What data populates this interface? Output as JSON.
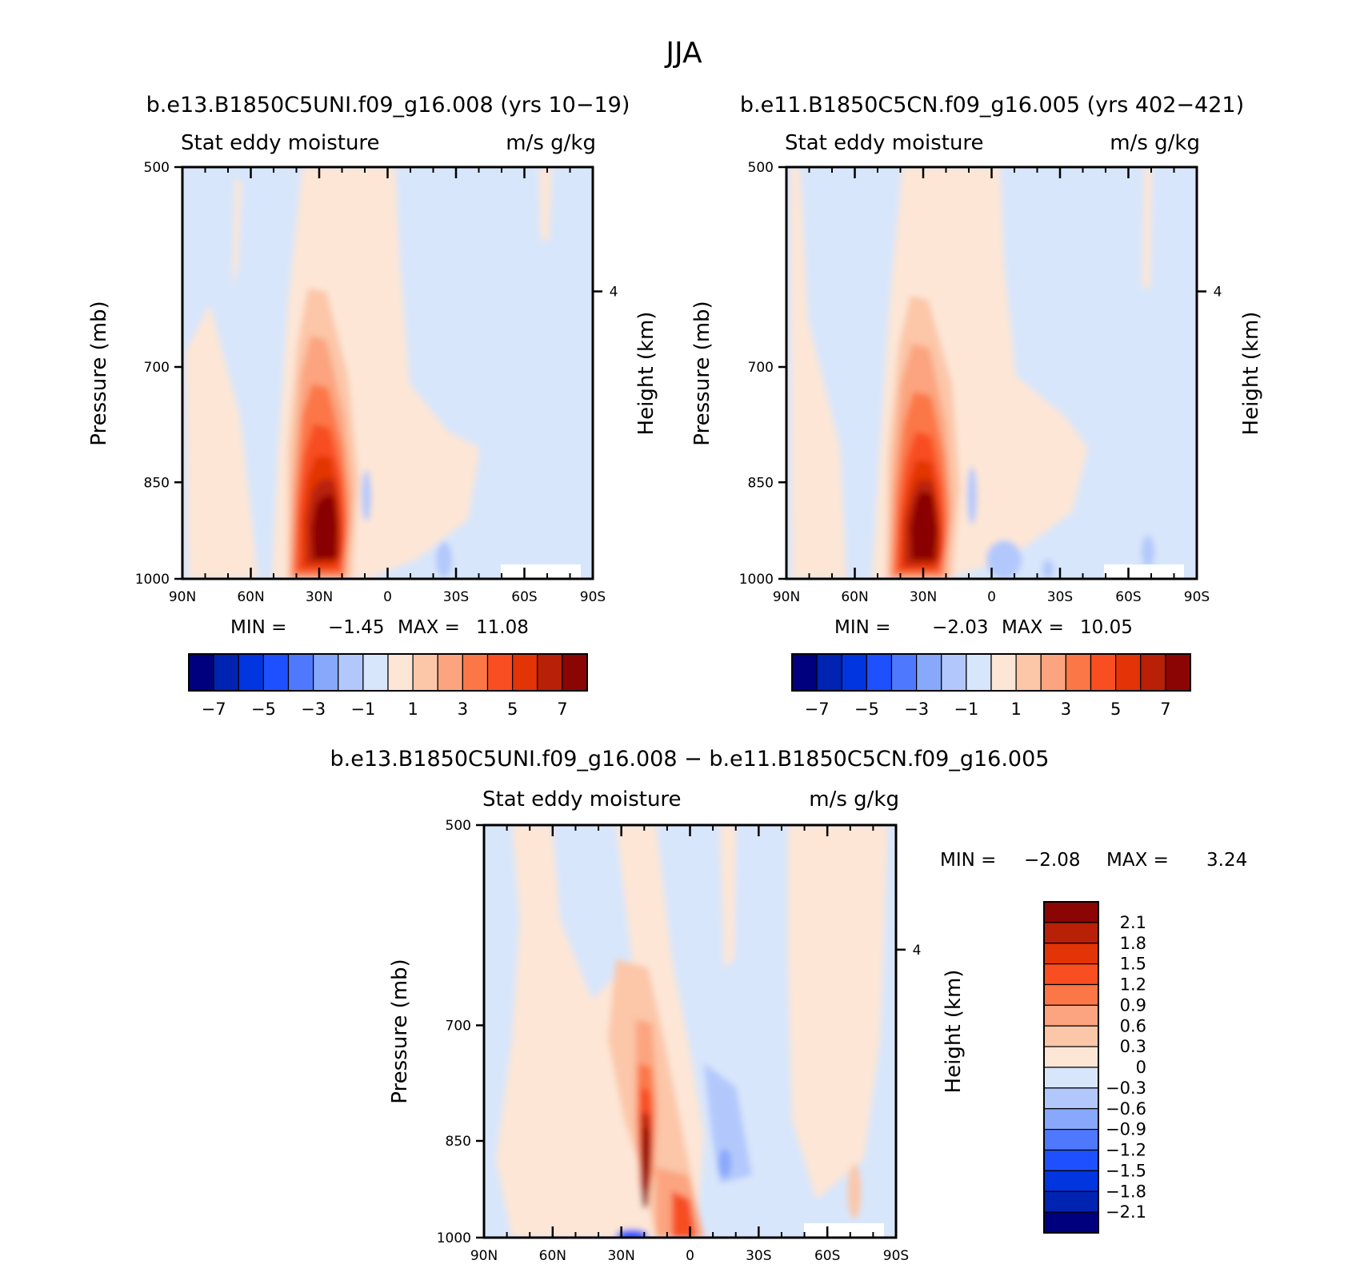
{
  "chart_data": {
    "type": "heatmap",
    "title": "JJA",
    "panels": [
      {
        "id": "model-a",
        "subtitle": "b.e13.B1850C5UNI.f09_g16.008 (yrs 10−19)",
        "left_label": "Stat eddy moisture",
        "right_label": "m/s g/kg",
        "ylabel": "Pressure (mb)",
        "ylabel_right": "Height (km)",
        "x_ticks": [
          "90N",
          "60N",
          "30N",
          "0",
          "30S",
          "60S",
          "90S"
        ],
        "x_range": [
          90,
          -90
        ],
        "y_ticks": [
          "500",
          "700",
          "850",
          "1000"
        ],
        "y_range": [
          500,
          1000
        ],
        "height_ticks": [
          "4"
        ],
        "min_label": "MIN =",
        "min": "−1.45",
        "max_label": "MAX =",
        "max": "11.08",
        "colorbar_labels": [
          "−7",
          "−5",
          "−3",
          "−1",
          "1",
          "3",
          "5",
          "7"
        ],
        "contour_levels": [
          -7,
          -6,
          -5,
          -4,
          -3,
          -2,
          -1,
          0,
          1,
          2,
          3,
          4,
          5,
          6,
          7
        ]
      },
      {
        "id": "model-b",
        "subtitle": "b.e11.B1850C5CN.f09_g16.005 (yrs 402−421)",
        "left_label": "Stat eddy moisture",
        "right_label": "m/s g/kg",
        "ylabel": "Pressure (mb)",
        "ylabel_right": "Height (km)",
        "x_ticks": [
          "90N",
          "60N",
          "30N",
          "0",
          "30S",
          "60S",
          "90S"
        ],
        "x_range": [
          90,
          -90
        ],
        "y_ticks": [
          "500",
          "700",
          "850",
          "1000"
        ],
        "y_range": [
          500,
          1000
        ],
        "height_ticks": [
          "4"
        ],
        "min_label": "MIN =",
        "min": "−2.03",
        "max_label": "MAX =",
        "max": "10.05",
        "colorbar_labels": [
          "−7",
          "−5",
          "−3",
          "−1",
          "1",
          "3",
          "5",
          "7"
        ],
        "contour_levels": [
          -7,
          -6,
          -5,
          -4,
          -3,
          -2,
          -1,
          0,
          1,
          2,
          3,
          4,
          5,
          6,
          7
        ]
      },
      {
        "id": "difference",
        "subtitle": "b.e13.B1850C5UNI.f09_g16.008 − b.e11.B1850C5CN.f09_g16.005",
        "left_label": "Stat eddy moisture",
        "right_label": "m/s g/kg",
        "ylabel": "Pressure (mb)",
        "ylabel_right": "Height (km)",
        "x_ticks": [
          "90N",
          "60N",
          "30N",
          "0",
          "30S",
          "60S",
          "90S"
        ],
        "x_range": [
          90,
          -90
        ],
        "y_ticks": [
          "500",
          "700",
          "850",
          "1000"
        ],
        "y_range": [
          500,
          1000
        ],
        "height_ticks": [
          "4"
        ],
        "min_label": "MIN =",
        "min": "−2.08",
        "max_label": "MAX =",
        "max": "3.24",
        "colorbar_labels": [
          "2.1",
          "1.8",
          "1.5",
          "1.2",
          "0.9",
          "0.6",
          "0.3",
          "0",
          "−0.3",
          "−0.6",
          "−0.9",
          "−1.2",
          "−1.5",
          "−1.8",
          "−2.1"
        ],
        "contour_levels": [
          -2.1,
          -1.8,
          -1.5,
          -1.2,
          -0.9,
          -0.6,
          -0.3,
          0,
          0.3,
          0.6,
          0.9,
          1.2,
          1.5,
          1.8,
          2.1
        ]
      }
    ],
    "colors": [
      "#00007f",
      "#0023b2",
      "#0035e0",
      "#1e50ff",
      "#4e79ff",
      "#88a8fb",
      "#b2c8fc",
      "#d8e6fb",
      "#fde6d6",
      "#fcc6a8",
      "#fba47f",
      "#fb7747",
      "#f84e22",
      "#e23406",
      "#b82007",
      "#8a0504"
    ]
  }
}
